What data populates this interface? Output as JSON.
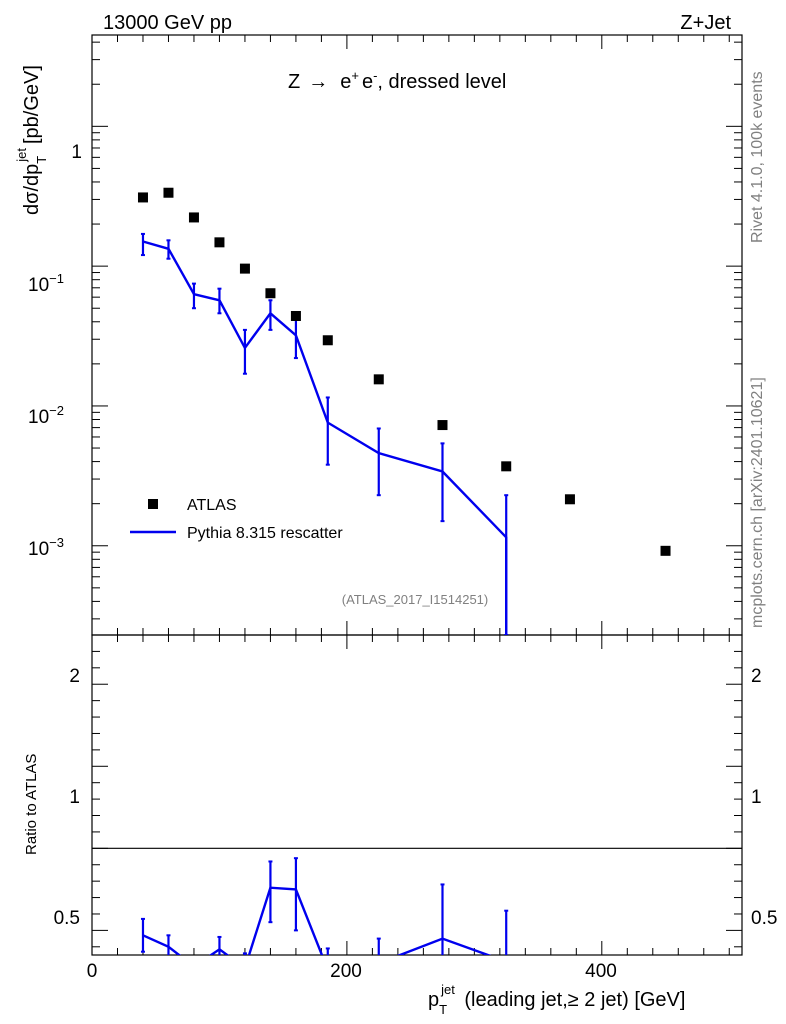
{
  "header": {
    "left": "13000 GeV pp",
    "right": "Z+Jet"
  },
  "side_text": {
    "top": "Rivet 4.1.0,  100k events",
    "bottom": "mcplots.cern.ch [arXiv:2401.10621]"
  },
  "colors": {
    "data": "#000000",
    "mc": "#0000ee",
    "watermark": "#808080"
  },
  "chart_data": [
    {
      "type": "scatter",
      "panel": "main",
      "title": "Z → e⁺ e⁻, dressed level",
      "title_parts": {
        "prefix": "Z",
        "arrow": "→",
        "e_plus": "e",
        "sup_plus": "+",
        "e_minus": "e",
        "sup_minus": "-",
        "suffix": ", dressed level"
      },
      "watermark": "(ATLAS_2017_I1514251)",
      "ylabel": "dσ/dp_T^jet [pb/GeV]",
      "ylabel_parts": {
        "main": "dσ/dp",
        "sub": "T",
        "sup": "jet",
        "unit": "[pb/GeV]"
      },
      "yscale": "log",
      "ylim": [
        0.00023,
        4.5
      ],
      "xlim": [
        0,
        510
      ],
      "y_tick_labels": [
        {
          "value": 1,
          "base": "1",
          "exp": ""
        },
        {
          "value": 0.1,
          "base": "10",
          "exp": "−1"
        },
        {
          "value": 0.01,
          "base": "10",
          "exp": "−2"
        },
        {
          "value": 0.001,
          "base": "10",
          "exp": "−3"
        }
      ],
      "legend_position": "lower-left",
      "series": [
        {
          "name": "ATLAS",
          "style": "markers",
          "x": [
            40,
            60,
            80,
            100,
            120,
            140,
            160,
            185,
            225,
            275,
            325,
            375,
            450
          ],
          "y": [
            0.31,
            0.335,
            0.223,
            0.148,
            0.096,
            0.064,
            0.044,
            0.0295,
            0.0155,
            0.0073,
            0.0037,
            0.00215,
            0.00092
          ]
        },
        {
          "name": "Pythia 8.315 rescatter",
          "style": "line",
          "x": [
            40,
            60,
            80,
            100,
            120,
            140,
            160,
            185,
            225,
            275,
            325
          ],
          "y": [
            0.15,
            0.133,
            0.063,
            0.057,
            0.026,
            0.046,
            0.032,
            0.0076,
            0.0046,
            0.0034,
            0.00115
          ],
          "err_low": [
            0.12,
            0.113,
            0.05,
            0.046,
            0.017,
            0.035,
            0.022,
            0.0038,
            0.0023,
            0.0015,
            0.00023
          ],
          "err_high": [
            0.17,
            0.153,
            0.075,
            0.069,
            0.035,
            0.057,
            0.042,
            0.0115,
            0.0069,
            0.0054,
            0.0023
          ]
        }
      ]
    },
    {
      "type": "line",
      "panel": "ratio",
      "ylabel": "Ratio to ATLAS",
      "ylim": [
        0.35,
        2.3
      ],
      "xlim": [
        0,
        510
      ],
      "xlabel": "p_T^jet (leading jet,≥ 2 jet) [GeV]",
      "xlabel_parts": {
        "main": "p",
        "sub": "T",
        "sup": "jet",
        "rest": " (leading jet,≥ 2 jet) [GeV]"
      },
      "x_ticks": [
        0,
        200,
        400
      ],
      "x_tick_labels": [
        "0",
        "200",
        "400"
      ],
      "y_ticks": [
        0.5,
        1,
        2
      ],
      "y_tick_labels": [
        "0.5",
        "1",
        "2"
      ],
      "reference_line": 1,
      "series": [
        {
          "name": "Pythia 8.315 rescatter",
          "x": [
            40,
            60,
            80,
            100,
            120,
            140,
            160,
            185,
            225,
            275,
            325
          ],
          "y": [
            0.47,
            0.4,
            0.28,
            0.385,
            0.27,
            0.76,
            0.75,
            0.26,
            0.3,
            0.45,
            0.31
          ],
          "err_low": [
            0.37,
            0.33,
            0.22,
            0.31,
            0.18,
            0.55,
            0.5,
            0.13,
            0.15,
            0.2,
            0.06
          ],
          "err_high": [
            0.57,
            0.47,
            0.34,
            0.46,
            0.36,
            0.92,
            0.94,
            0.39,
            0.45,
            0.78,
            0.62
          ]
        }
      ]
    }
  ]
}
